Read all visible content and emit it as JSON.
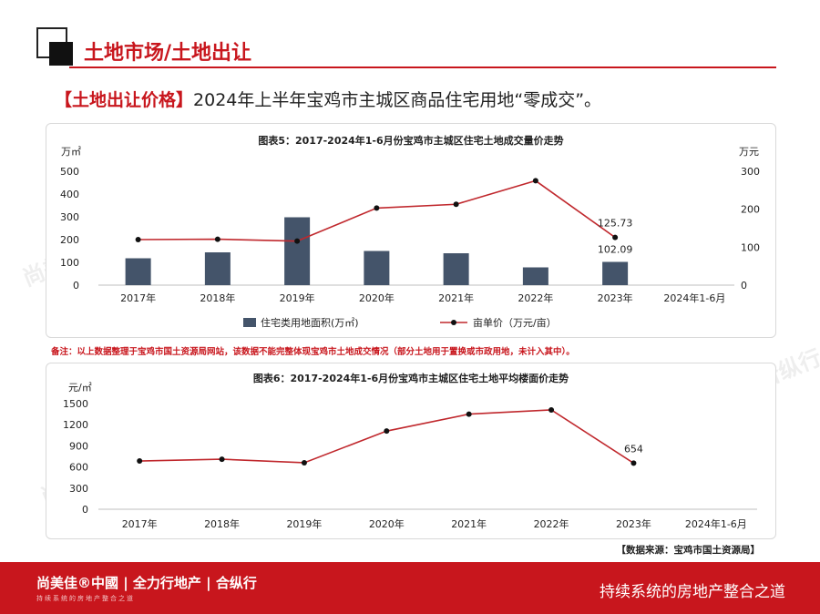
{
  "header": {
    "title": "土地市场/土地出让",
    "tag": "【土地出让价格】",
    "headline": "2024年上半年宝鸡市主城区商品住宅用地“零成交”。"
  },
  "note": "备注：以上数据整理于宝鸡市国土资源局网站，该数据不能完整体现宝鸡市土地成交情况（部分土地用于置换或市政用地，未计入其中）。",
  "source": "【数据来源：宝鸡市国土资源局】",
  "footer": {
    "brand": "尚美佳®中國 | 全力行地产 | 合纵行",
    "brand_sub": "持续系统的房地产整合之道",
    "slogan": "持续系统的房地产整合之道"
  },
  "watermarks": [
    "尚美佳®中國",
    "全力行地产",
    "合纵行"
  ],
  "colors": {
    "accent": "#c8161d",
    "bar": "#44546a",
    "line": "#c0282d",
    "marker": "#111111"
  },
  "chart_data": [
    {
      "type": "bar",
      "title": "图表5：2017-2024年1-6月份宝鸡市主城区住宅土地成交量价走势",
      "categories": [
        "2017年",
        "2018年",
        "2019年",
        "2020年",
        "2021年",
        "2022年",
        "2023年",
        "2024年1-6月"
      ],
      "y_unit_left": "万㎡",
      "y_unit_right": "万元",
      "ylim_left": [
        0,
        500
      ],
      "yticks_left": [
        0,
        100,
        200,
        300,
        400,
        500
      ],
      "ylim_right": [
        0,
        300
      ],
      "yticks_right": [
        0,
        100,
        200,
        300
      ],
      "series": [
        {
          "name": "住宅类用地面积(万㎡)",
          "type": "bar",
          "axis": "left",
          "values": [
            118,
            144,
            298,
            150,
            140,
            78,
            102.09,
            null
          ]
        },
        {
          "name": "亩单价（万元/亩）",
          "type": "line",
          "axis": "right",
          "values": [
            120,
            121,
            116,
            203,
            213,
            275,
            125.73,
            null
          ]
        }
      ],
      "data_labels": [
        {
          "text": "125.73",
          "category": "2023年"
        },
        {
          "text": "102.09",
          "category": "2023年"
        }
      ],
      "legend": "bottom",
      "grid": false
    },
    {
      "type": "line",
      "title": "图表6：2017-2024年1-6月份宝鸡市主城区住宅土地平均楼面价走势",
      "categories": [
        "2017年",
        "2018年",
        "2019年",
        "2020年",
        "2021年",
        "2022年",
        "2023年",
        "2024年1-6月"
      ],
      "y_unit": "元/㎡",
      "ylim": [
        0,
        1500
      ],
      "yticks": [
        0,
        300,
        600,
        900,
        1200,
        1500
      ],
      "series": [
        {
          "name": "楼面价",
          "values": [
            685,
            710,
            660,
            1110,
            1350,
            1410,
            654,
            null
          ]
        }
      ],
      "data_labels": [
        {
          "text": "654",
          "category": "2023年"
        }
      ],
      "grid": false
    }
  ]
}
